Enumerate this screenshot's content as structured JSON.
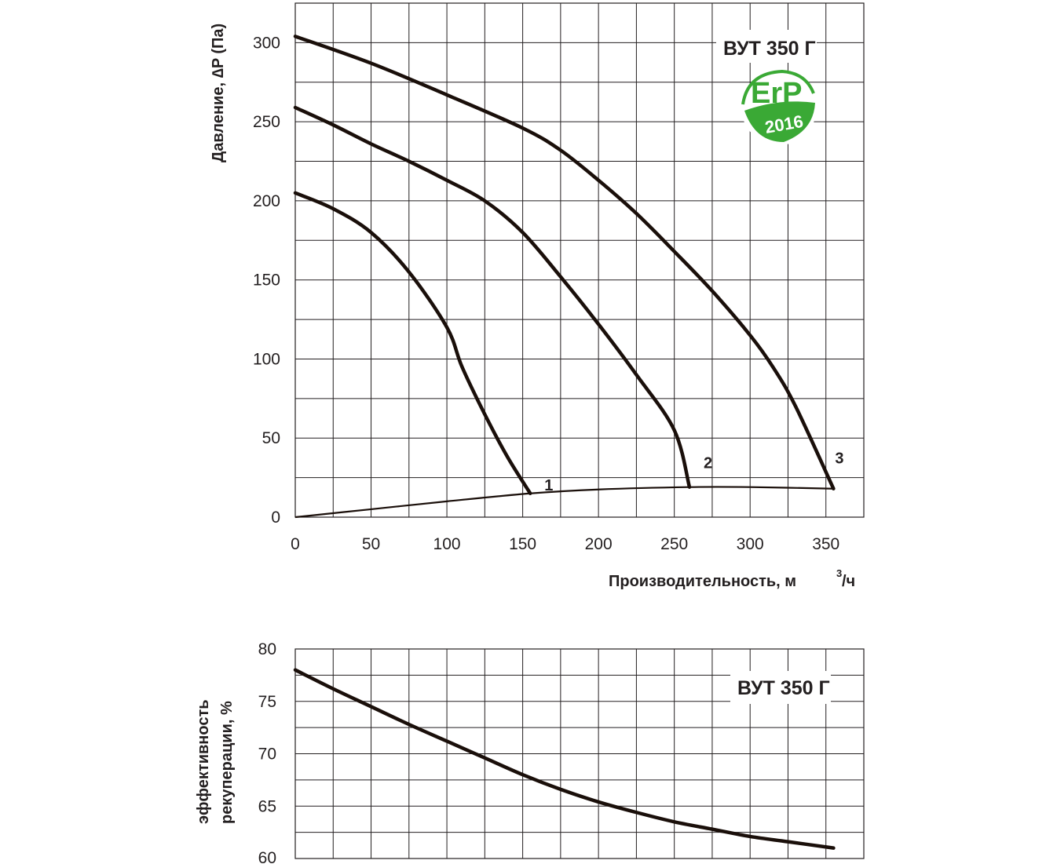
{
  "chart_data": [
    {
      "type": "line",
      "model_label": "ВУТ 350 Г",
      "badge": {
        "text": "ErP",
        "year": "2016",
        "color": "#3aa935"
      },
      "xlabel": "Производительность,  м",
      "xlabel_sup": "3",
      "xlabel_tail": "/ч",
      "ylabel": "Давление, ∆P (Па)",
      "xlim": [
        0,
        375
      ],
      "ylim": [
        0,
        325
      ],
      "x_ticks": [
        0,
        50,
        100,
        150,
        200,
        250,
        300,
        350
      ],
      "y_ticks": [
        0,
        50,
        100,
        150,
        200,
        250,
        300
      ],
      "grid": true,
      "series": [
        {
          "name": "1",
          "x": [
            0,
            25,
            50,
            75,
            100,
            110,
            125,
            140,
            155
          ],
          "y": [
            205,
            195,
            180,
            155,
            120,
            95,
            65,
            38,
            15
          ]
        },
        {
          "name": "2",
          "x": [
            0,
            25,
            50,
            75,
            100,
            125,
            150,
            175,
            200,
            225,
            250,
            260
          ],
          "y": [
            259,
            248,
            236,
            225,
            213,
            200,
            180,
            152,
            122,
            90,
            55,
            19
          ]
        },
        {
          "name": "3",
          "x": [
            0,
            50,
            100,
            150,
            175,
            200,
            225,
            250,
            275,
            300,
            315,
            330,
            355
          ],
          "y": [
            304,
            287,
            267,
            246,
            232,
            213,
            192,
            168,
            143,
            115,
            95,
            70,
            18
          ]
        },
        {
          "name": "",
          "x": [
            0,
            50,
            100,
            155,
            200,
            260,
            300,
            355
          ],
          "y": [
            0,
            5,
            10,
            15,
            17.5,
            19,
            19,
            18
          ]
        }
      ]
    },
    {
      "type": "line",
      "model_label": "ВУТ 350 Г",
      "ylabel_line1": "эффективность",
      "ylabel_line2": "рекуперации, %",
      "xlim": [
        0,
        375
      ],
      "ylim": [
        60,
        80
      ],
      "x_ticks": [
        0,
        50,
        100,
        150,
        200,
        250,
        300,
        350
      ],
      "y_ticks": [
        60,
        65,
        70,
        75,
        80
      ],
      "grid": true,
      "series": [
        {
          "name": "",
          "x": [
            0,
            25,
            50,
            75,
            100,
            125,
            150,
            175,
            200,
            225,
            250,
            275,
            300,
            325,
            355
          ],
          "y": [
            78,
            76.2,
            74.5,
            72.8,
            71.2,
            69.6,
            68,
            66.6,
            65.4,
            64.4,
            63.5,
            62.8,
            62.1,
            61.6,
            61
          ]
        }
      ]
    }
  ]
}
